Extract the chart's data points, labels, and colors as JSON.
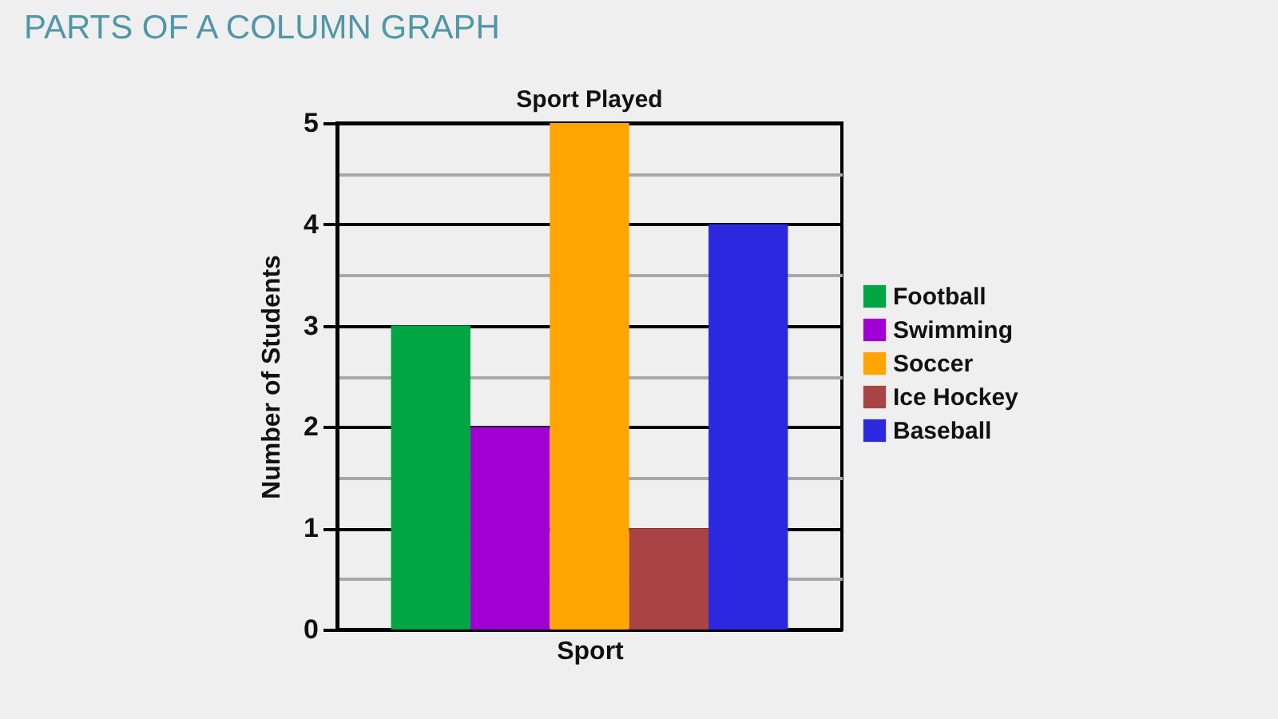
{
  "chart_data": {
    "type": "bar",
    "title": "PARTS OF A COLUMN GRAPH",
    "subtitle": "Sport Played",
    "xlabel": "Sport",
    "ylabel": "Number of Students",
    "categories": [
      null,
      null,
      null,
      null,
      null
    ],
    "series": [
      {
        "name": "Football",
        "color": "#00a544",
        "values": [
          3,
          null,
          null,
          null,
          null
        ]
      },
      {
        "name": "Swimming",
        "color": "#a100d4",
        "values": [
          null,
          2,
          null,
          null,
          null
        ]
      },
      {
        "name": "Soccer",
        "color": "#ffa500",
        "values": [
          null,
          null,
          5,
          null,
          null
        ]
      },
      {
        "name": "Ice Hockey",
        "color": "#a84444",
        "values": [
          null,
          null,
          null,
          1,
          null
        ]
      },
      {
        "name": "Baseball",
        "color": "#2b28e0",
        "values": [
          null,
          null,
          null,
          null,
          4
        ]
      }
    ],
    "stacked": true,
    "ylim": [
      0,
      5
    ],
    "yticks": [
      0,
      {
        "value": 0.5,
        "label": null
      },
      1,
      {
        "value": 1.5,
        "label": null
      },
      2,
      {
        "value": 2.5,
        "label": null
      },
      3,
      {
        "value": 3.5,
        "label": null
      },
      4,
      {
        "value": 4.5,
        "label": null
      },
      5
    ],
    "grid": "y",
    "legend": "right",
    "tick_labels": "y"
  }
}
